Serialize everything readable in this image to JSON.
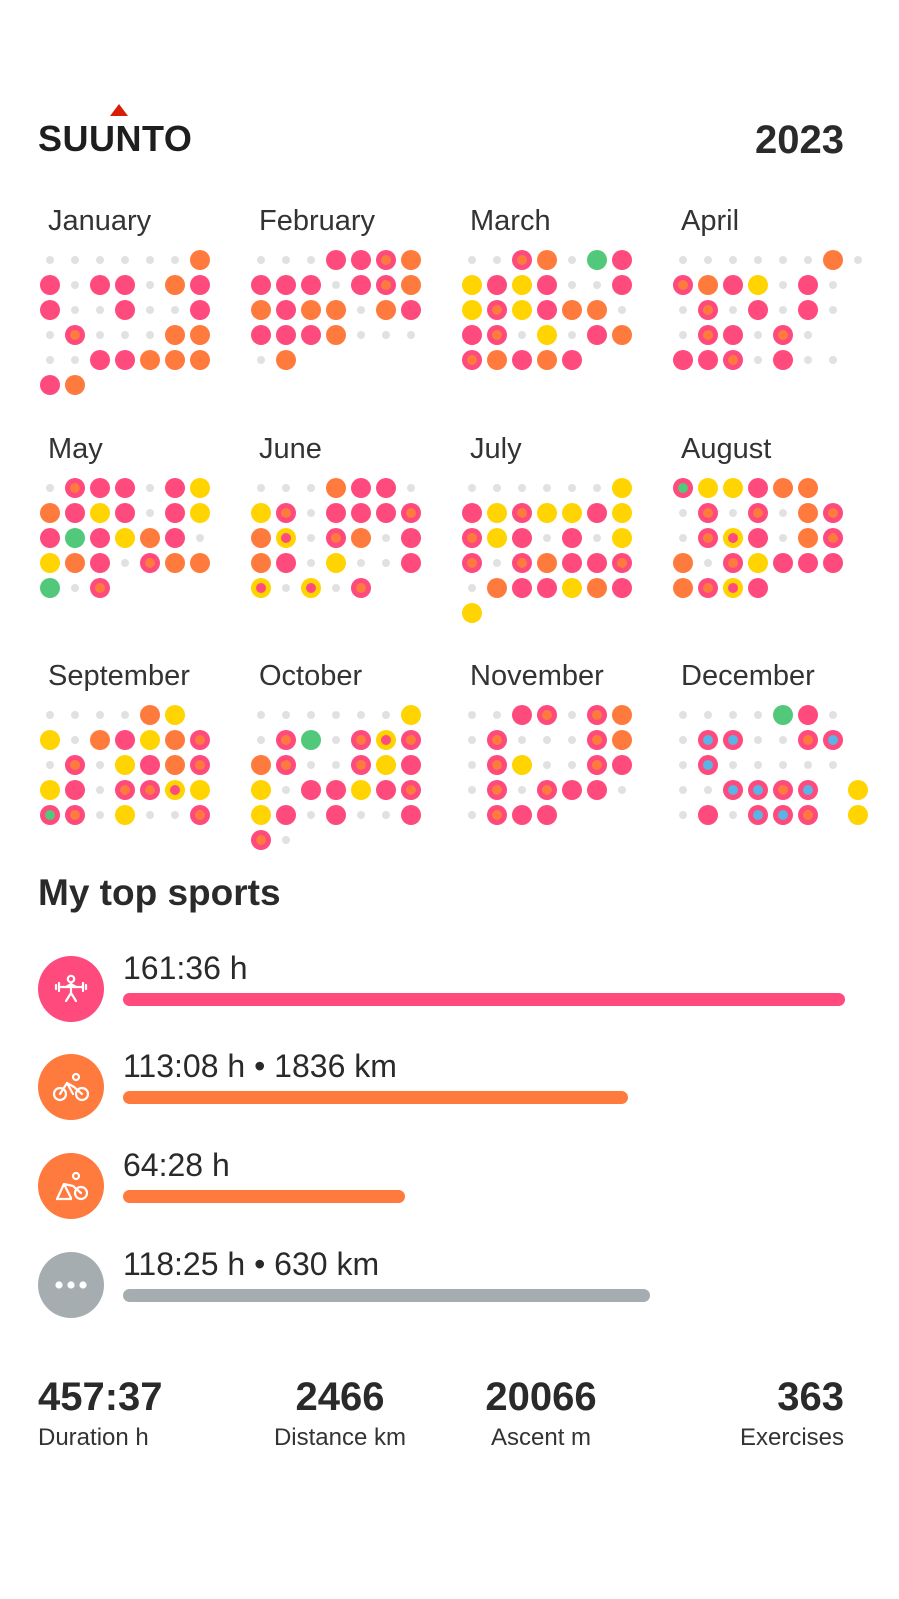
{
  "brand": {
    "name": "SUUNTO"
  },
  "year": "2023",
  "colors": {
    "pink": "#ff4a7d",
    "orange": "#ff7a3d",
    "yellow": "#ffd400",
    "green": "#52c97a",
    "blue": "#5ab4e6",
    "empty": "#e1e1e1",
    "gray": "#a6adb0"
  },
  "months": [
    {
      "name": "January",
      "rows": [
        "......O",
        "P.PP.OP",
        "P..P..P",
        ".o...OO",
        "..PPOOO",
        "PO"
      ]
    },
    {
      "name": "February",
      "rows": [
        "...PPoO",
        "PPP.PoO",
        "OPOO.OP",
        "PPPO...",
        ".O"
      ]
    },
    {
      "name": "March",
      "rows": [
        "..oO.GP",
        "YPYP..P",
        "YoYPOO.",
        "Po.Y.PO",
        "oOPOP"
      ]
    },
    {
      "name": "April",
      "rows": [
        "......O.",
        "oOPY.P.",
        ".o.P.P.",
        ".oP.o.",
        "PPo.P.."
      ]
    },
    {
      "name": "May",
      "rows": [
        ".oPP.PY",
        "OPYP.PY",
        "PGPYOP.",
        "YOP.oOO",
        "G.o"
      ]
    },
    {
      "name": "June",
      "rows": [
        "...OPP.",
        "Yo.PPPo",
        "Oy.oO.P",
        "OP.Y..P",
        "y.y.o"
      ]
    },
    {
      "name": "July",
      "rows": [
        "......Y",
        "PYoYYPY",
        "oYP.P.Y",
        "o.oOPPo",
        ".OPPYOP",
        "Y"
      ]
    },
    {
      "name": "August",
      "rows": [
        "gYYPOO",
        ".o.o.Oo",
        ".oyP.Oo",
        "O.oYPPP",
        "OoyP"
      ]
    },
    {
      "name": "September",
      "rows": [
        "....OY",
        "Y.OPYOo",
        ".o.YPOo",
        "YP.ooyY",
        "go.Y..o"
      ]
    },
    {
      "name": "October",
      "rows": [
        "......Y",
        ".oG.oyo",
        "Oo..oYP",
        "Y.PPYPo",
        "YP.P..P",
        "o."
      ]
    },
    {
      "name": "November",
      "rows": [
        "..Po.oO",
        ".o...oO",
        ".oY..oP",
        ".o.oPP.",
        ".oPP"
      ]
    },
    {
      "name": "December",
      "rows": [
        "....GP.",
        ".bb..ob",
        ".b.....",
        "..bbob Y",
        ".P.bbo Y"
      ]
    }
  ],
  "top_sports_title": "My top sports",
  "sports": [
    {
      "icon": "weight-training-icon",
      "text": "161:36 h",
      "fraction": 1.0,
      "color": "#ff4a7d"
    },
    {
      "icon": "cycling-icon",
      "text": "113:08 h • 1836 km",
      "fraction": 0.7,
      "color": "#ff7a3d"
    },
    {
      "icon": "indoor-cycling-icon",
      "text": "64:28 h",
      "fraction": 0.39,
      "color": "#ff7a3d"
    },
    {
      "icon": "more-icon",
      "text": "118:25 h • 630 km",
      "fraction": 0.73,
      "color": "#a6adb0"
    }
  ],
  "stats": [
    {
      "value": "457:37",
      "label": "Duration h"
    },
    {
      "value": "2466",
      "label": "Distance km"
    },
    {
      "value": "20066",
      "label": "Ascent m"
    },
    {
      "value": "363",
      "label": "Exercises"
    }
  ]
}
